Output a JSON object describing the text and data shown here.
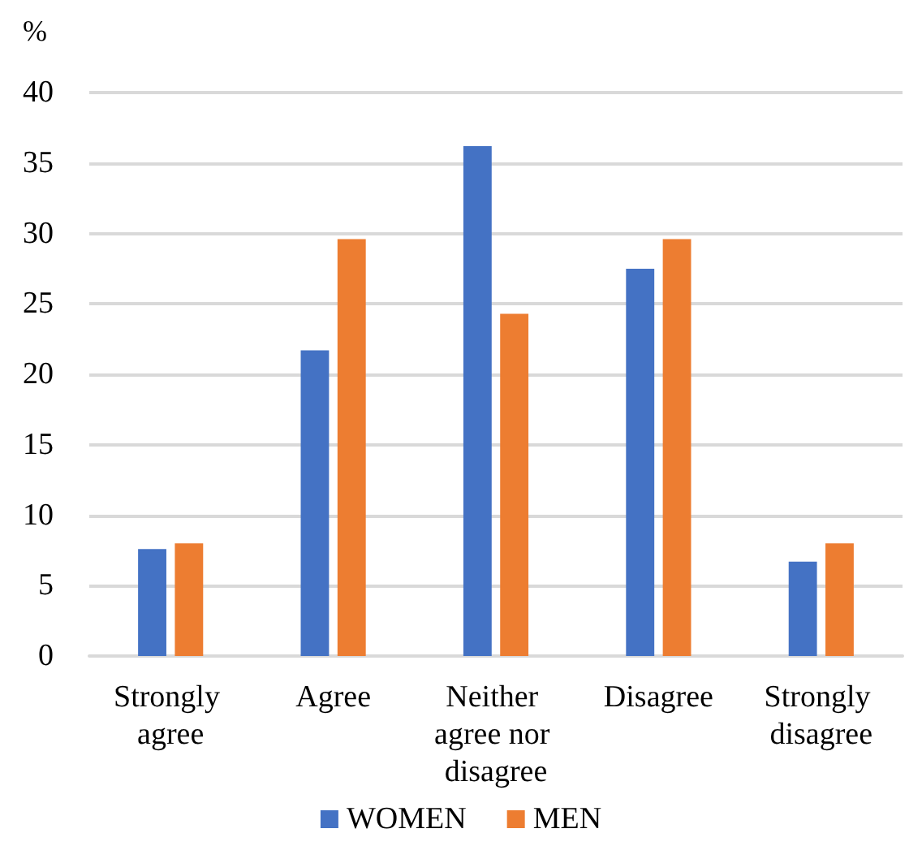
{
  "chart_data": {
    "type": "bar",
    "ylabel": "%",
    "categories": [
      "Strongly agree",
      "Agree",
      "Neither agree nor disagree",
      "Disagree",
      "Strongly disagree"
    ],
    "series": [
      {
        "name": "WOMEN",
        "color": "#4472c4",
        "values": [
          7.6,
          21.7,
          36.2,
          27.5,
          6.7
        ]
      },
      {
        "name": "MEN",
        "color": "#ed7d31",
        "values": [
          8.0,
          29.6,
          24.3,
          29.6,
          8.0
        ]
      }
    ],
    "ylim": [
      0,
      40
    ],
    "yticks": [
      0,
      5,
      10,
      15,
      20,
      25,
      30,
      35,
      40
    ],
    "grid": "y",
    "legend": "bottom"
  }
}
